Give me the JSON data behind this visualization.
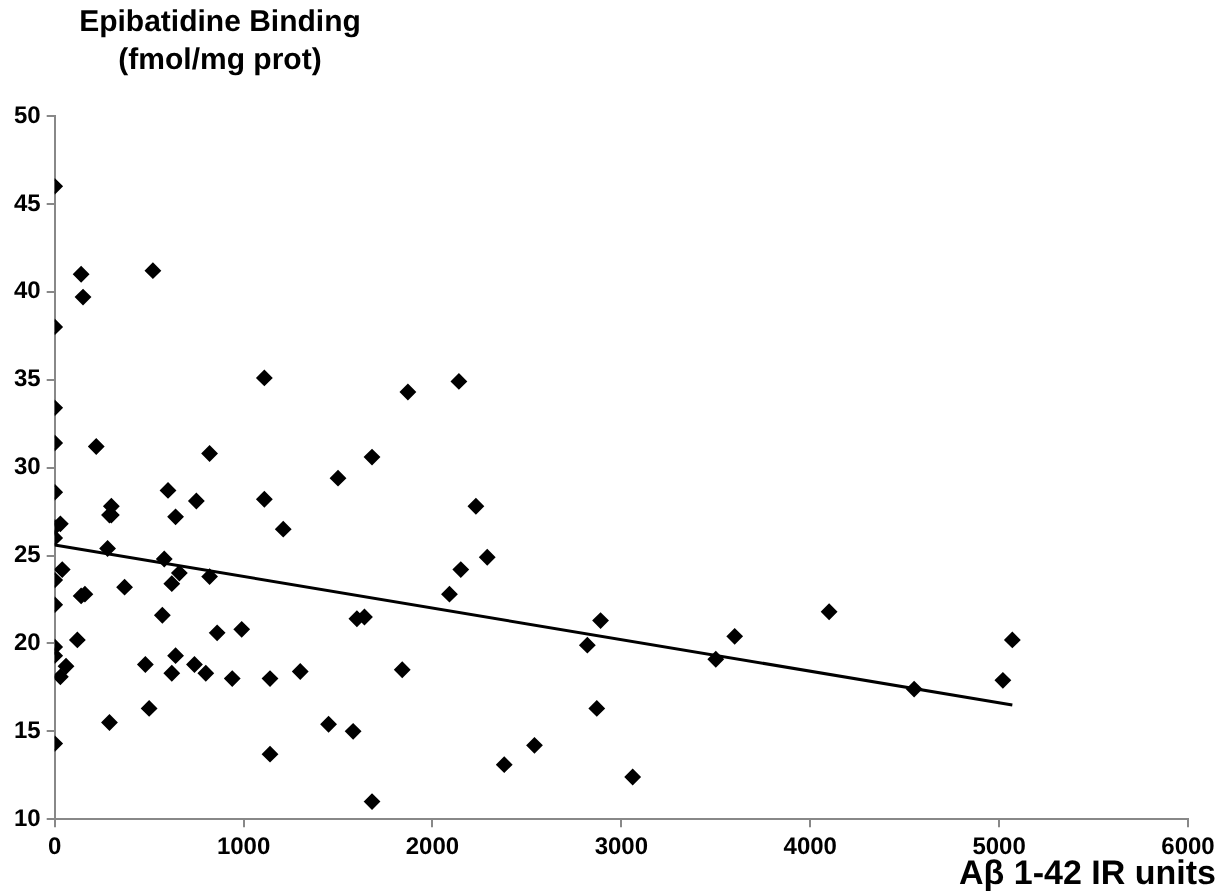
{
  "chart_data": {
    "type": "scatter",
    "ylabel": "Epibatidine Binding\n(fmol/mg prot)",
    "xlabel": "Aβ 1-42 IR units",
    "xlim": [
      0,
      6000
    ],
    "xticks": [
      0,
      1000,
      2000,
      3000,
      4000,
      5000,
      6000
    ],
    "ylim": [
      10,
      50
    ],
    "yticks": [
      10,
      15,
      20,
      25,
      30,
      35,
      40,
      45,
      50
    ],
    "grid": false,
    "legend": false,
    "series": [
      {
        "marker": "diamond",
        "color": "#000000",
        "x": [
          0,
          0,
          0,
          0,
          0,
          0,
          0,
          0,
          0,
          0,
          0,
          0,
          30,
          40,
          30,
          60,
          120,
          140,
          150,
          140,
          160,
          220,
          280,
          290,
          300,
          300,
          290,
          370,
          480,
          500,
          520,
          570,
          580,
          600,
          620,
          620,
          640,
          640,
          660,
          740,
          750,
          800,
          820,
          820,
          860,
          940,
          990,
          1110,
          1110,
          1140,
          1140,
          1210,
          1300,
          1450,
          1500,
          1580,
          1600,
          1640,
          1680,
          1680,
          1840,
          1870,
          2090,
          2140,
          2150,
          2230,
          2290,
          2380,
          2540,
          2820,
          2870,
          2890,
          3060,
          3500,
          3600,
          4100,
          4550,
          5020,
          5070
        ],
        "values": [
          46,
          38,
          33.4,
          31.4,
          28.6,
          26.6,
          26,
          23.6,
          22.2,
          19.8,
          19.3,
          14.3,
          26.8,
          24.2,
          18.1,
          18.7,
          20.2,
          41,
          39.7,
          22.7,
          22.8,
          31.2,
          25.4,
          27.3,
          27.8,
          27.3,
          15.5,
          23.2,
          18.8,
          16.3,
          41.2,
          21.6,
          24.8,
          28.7,
          23.4,
          18.3,
          27.2,
          19.3,
          24,
          18.8,
          28.1,
          18.3,
          30.8,
          23.8,
          20.6,
          18,
          20.8,
          35.1,
          28.2,
          18,
          13.7,
          26.5,
          18.4,
          15.4,
          29.4,
          15,
          21.4,
          21.5,
          30.6,
          11,
          18.5,
          34.3,
          22.8,
          34.9,
          24.2,
          27.8,
          24.9,
          13.1,
          14.2,
          19.9,
          16.3,
          21.3,
          12.4,
          19.1,
          20.4,
          21.8,
          17.4,
          17.9,
          20.2
        ]
      },
      {
        "type": "line",
        "marker": "none",
        "color": "#000000",
        "x": [
          0,
          5070
        ],
        "values": [
          25.6,
          16.5
        ]
      }
    ]
  }
}
